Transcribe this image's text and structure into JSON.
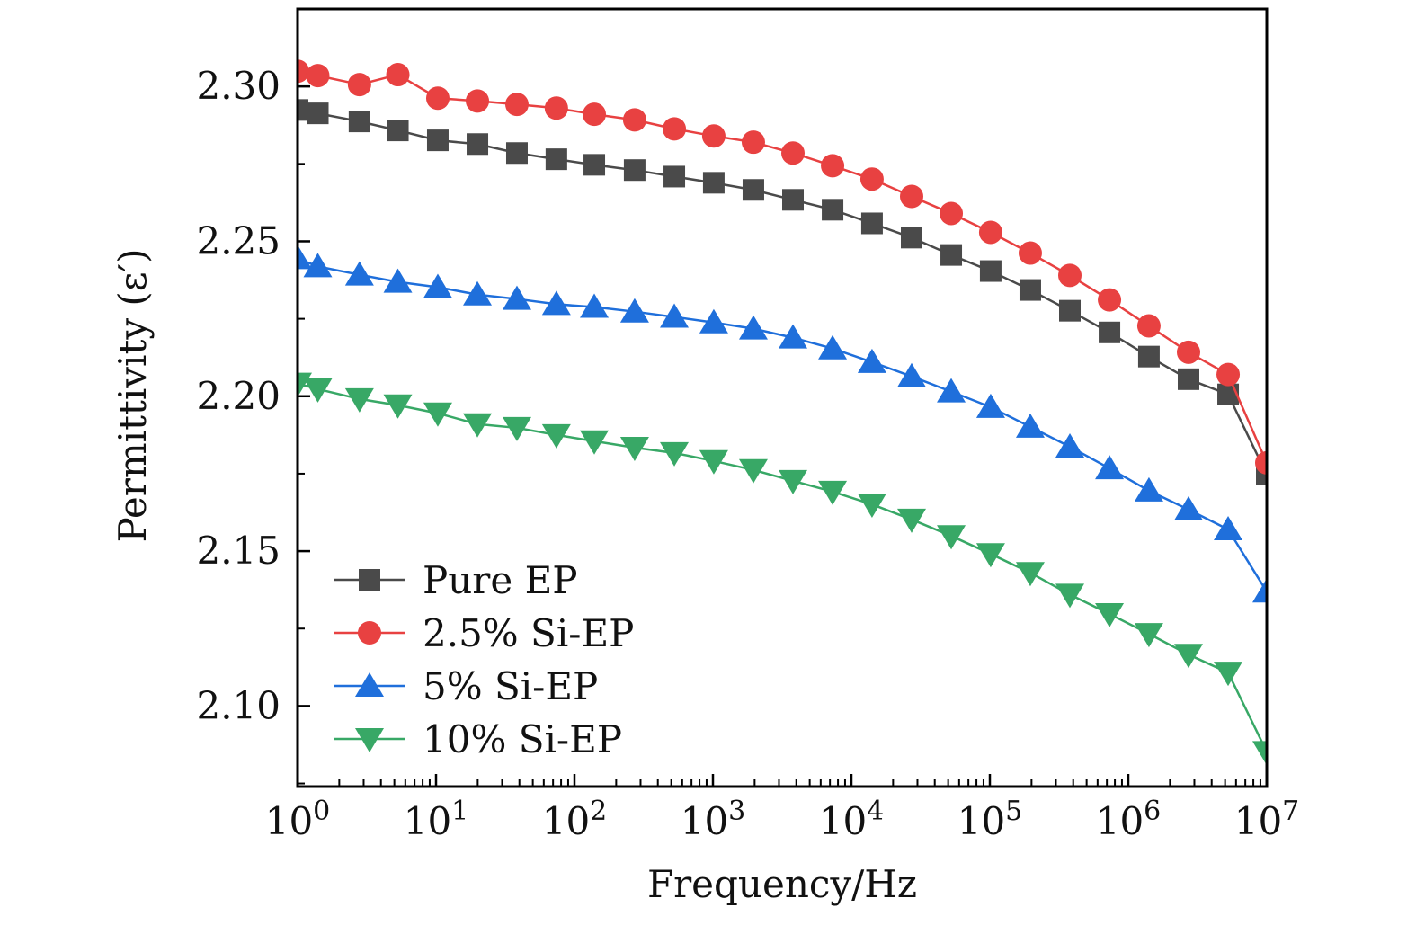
{
  "chart_data": {
    "type": "line",
    "title": "",
    "xlabel": "Frequency/Hz",
    "ylabel": "Permittivity (ε′)",
    "xscale": "log",
    "xlim": [
      1,
      10000000
    ],
    "ylim": [
      2.074,
      2.325
    ],
    "xticks": [
      1,
      10,
      100,
      1000,
      10000,
      100000,
      1000000,
      10000000
    ],
    "xtick_labels": [
      {
        "base": "10",
        "exp": "0"
      },
      {
        "base": "10",
        "exp": "1"
      },
      {
        "base": "10",
        "exp": "2"
      },
      {
        "base": "10",
        "exp": "3"
      },
      {
        "base": "10",
        "exp": "4"
      },
      {
        "base": "10",
        "exp": "5"
      },
      {
        "base": "10",
        "exp": "6"
      },
      {
        "base": "10",
        "exp": "7"
      }
    ],
    "yticks": [
      2.1,
      2.15,
      2.2,
      2.25,
      2.3
    ],
    "ytick_labels": [
      "2.10",
      "2.15",
      "2.20",
      "2.25",
      "2.30"
    ],
    "grid": false,
    "legend_position": "bottom-left",
    "x": [
      1,
      1.4,
      2.8,
      5.3,
      10.3,
      19.9,
      38.4,
      74,
      139,
      272,
      526,
      1014,
      1959,
      3784,
      7311,
      14090,
      27230,
      52600,
      101400,
      195900,
      378400,
      731100,
      1409000,
      2723000,
      5260000,
      10000000
    ],
    "series": [
      {
        "name": "Pure EP",
        "marker": "square",
        "color": "#4a4a4a",
        "values": [
          2.2924,
          2.2913,
          2.2887,
          2.2858,
          2.2826,
          2.2814,
          2.2785,
          2.2765,
          2.2747,
          2.273,
          2.2709,
          2.2689,
          2.2666,
          2.2634,
          2.2602,
          2.2558,
          2.2512,
          2.2456,
          2.2404,
          2.2343,
          2.2276,
          2.2206,
          2.2128,
          2.2055,
          2.2006,
          2.1747
        ]
      },
      {
        "name": "2.5% Si-EP",
        "marker": "circle",
        "color": "#e84141",
        "values": [
          2.3049,
          2.3035,
          2.3006,
          2.3038,
          2.2962,
          2.2953,
          2.2942,
          2.293,
          2.291,
          2.2892,
          2.2863,
          2.284,
          2.282,
          2.2785,
          2.2744,
          2.2701,
          2.2645,
          2.259,
          2.2529,
          2.2462,
          2.239,
          2.2311,
          2.2227,
          2.2142,
          2.207,
          2.1785
        ]
      },
      {
        "name": "5% Si-EP",
        "marker": "triangle-up",
        "color": "#1f6fdb",
        "values": [
          2.2445,
          2.2419,
          2.2392,
          2.2369,
          2.2352,
          2.2328,
          2.2314,
          2.2297,
          2.2288,
          2.2273,
          2.2256,
          2.2238,
          2.2218,
          2.2189,
          2.2154,
          2.211,
          2.2064,
          2.2015,
          2.1965,
          2.1901,
          2.1837,
          2.1767,
          2.1695,
          2.1634,
          2.157,
          2.1369
        ]
      },
      {
        "name": "10% Si-EP",
        "marker": "triangle-down",
        "color": "#38a866",
        "values": [
          2.2041,
          2.2023,
          2.1991,
          2.1971,
          2.1945,
          2.191,
          2.1898,
          2.1875,
          2.1855,
          2.1834,
          2.1817,
          2.1791,
          2.1762,
          2.1727,
          2.1692,
          2.1651,
          2.1602,
          2.1549,
          2.1491,
          2.143,
          2.136,
          2.1297,
          2.1233,
          2.1166,
          2.1108,
          2.0852
        ]
      }
    ]
  }
}
